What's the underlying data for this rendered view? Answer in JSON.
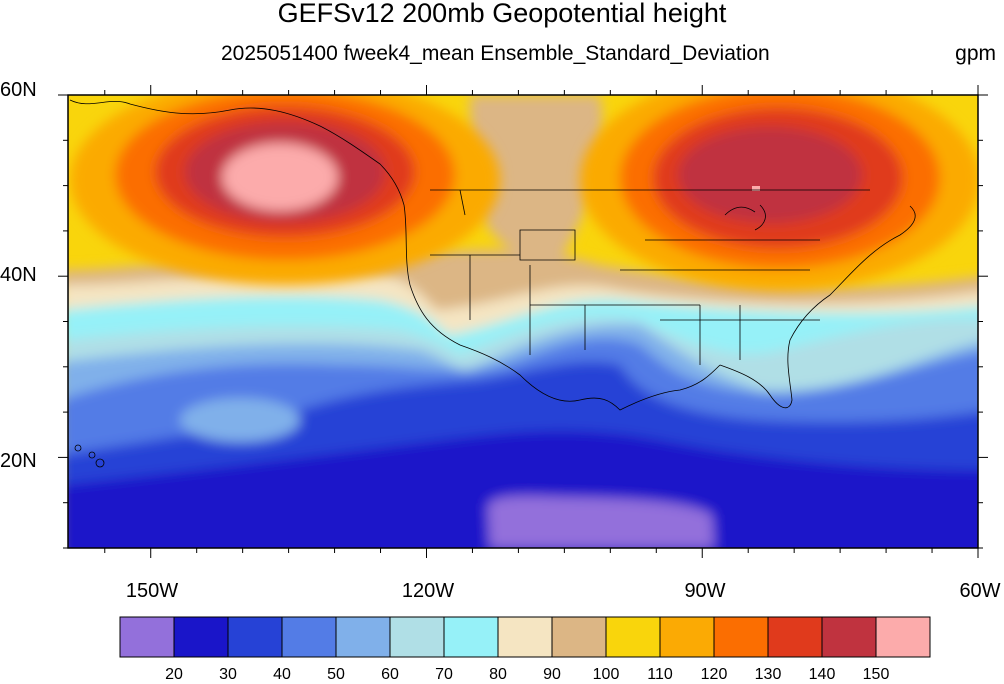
{
  "title": "GEFSv12 200mb Geopotential height",
  "subtitle": "2025051400 fweek4_mean Ensemble_Standard_Deviation",
  "units": "gpm",
  "lat_labels": [
    "60N",
    "40N",
    "20N"
  ],
  "lon_labels": [
    "150W",
    "120W",
    "90W",
    "60W"
  ],
  "colorbar": {
    "levels": [
      20,
      30,
      40,
      50,
      60,
      70,
      80,
      90,
      100,
      110,
      120,
      130,
      140,
      150
    ],
    "colors": [
      "#9370db",
      "#1a15c9",
      "#2642d6",
      "#537ce6",
      "#80b0ea",
      "#b0dfe6",
      "#96f1f8",
      "#f5e5c2",
      "#dcb685",
      "#f9d50c",
      "#fbaa04",
      "#fb6e01",
      "#e03a1c",
      "#c0333f",
      "#fcabab"
    ]
  },
  "chart_data": {
    "type": "contour-map",
    "variable": "200mb Geopotential height",
    "statistic": "Ensemble_Standard_Deviation",
    "units": "gpm",
    "lon_range": [
      -159,
      -60
    ],
    "lat_range": [
      10,
      60
    ],
    "contour_levels": [
      20,
      30,
      40,
      50,
      60,
      70,
      80,
      90,
      100,
      110,
      120,
      130,
      140,
      150
    ],
    "features": [
      {
        "label": "maximum over NE Pacific / Gulf of Alaska",
        "lon": -138,
        "lat": 52,
        "peak": 150
      },
      {
        "label": "maximum over Great Lakes / Canada",
        "lon": -83,
        "lat": 51,
        "peak": 150
      },
      {
        "label": "minimum over tropical eastern Pacific",
        "lon": -102,
        "lat": 12,
        "peak": 20
      }
    ]
  }
}
